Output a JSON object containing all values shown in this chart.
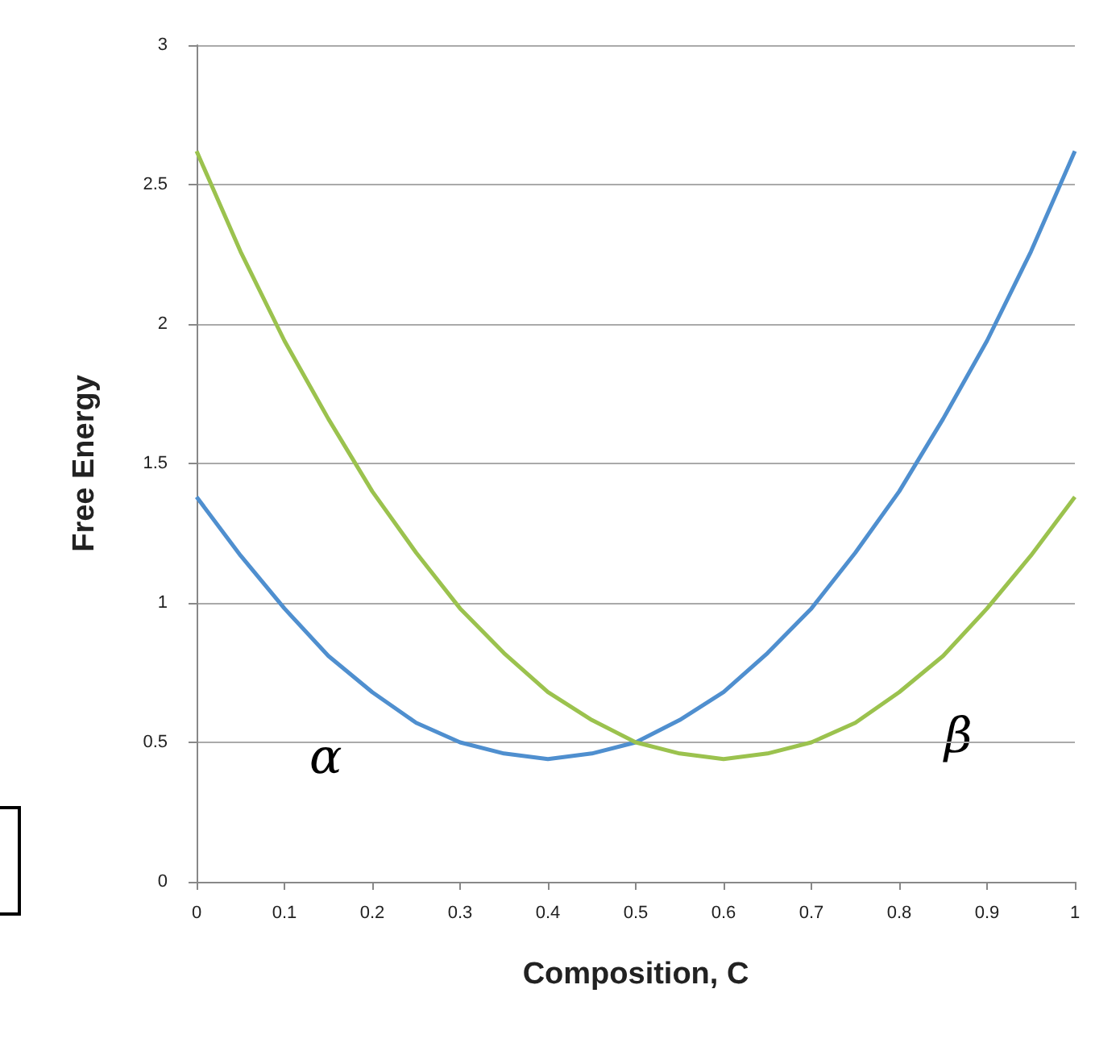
{
  "chart_data": {
    "type": "line",
    "xlabel": "Composition, C",
    "ylabel": "Free Energy",
    "x": [
      0,
      0.05,
      0.1,
      0.15,
      0.2,
      0.25,
      0.3,
      0.35,
      0.4,
      0.45,
      0.5,
      0.55,
      0.6,
      0.65,
      0.7,
      0.75,
      0.8,
      0.85,
      0.9,
      0.95,
      1
    ],
    "series": [
      {
        "color": "#4f8fcf",
        "values": [
          1.38,
          1.17,
          0.98,
          0.81,
          0.68,
          0.57,
          0.5,
          0.46,
          0.44,
          0.46,
          0.5,
          0.58,
          0.68,
          0.82,
          0.98,
          1.18,
          1.4,
          1.66,
          1.94,
          2.26,
          2.62
        ]
      },
      {
        "color": "#9bc24e",
        "values": [
          2.62,
          2.26,
          1.94,
          1.66,
          1.4,
          1.18,
          0.98,
          0.82,
          0.68,
          0.58,
          0.5,
          0.46,
          0.44,
          0.46,
          0.5,
          0.57,
          0.68,
          0.81,
          0.98,
          1.17,
          1.38
        ]
      }
    ],
    "annotations": [
      "α",
      "β"
    ],
    "xlim": [
      0,
      1
    ],
    "xticks": [
      0,
      0.1,
      0.2,
      0.3,
      0.4,
      0.5,
      0.6,
      0.7,
      0.8,
      0.9,
      1
    ],
    "ylim": [
      0,
      3
    ],
    "yticks": [
      0,
      0.5,
      1,
      1.5,
      2,
      2.5,
      3
    ],
    "grid": "y",
    "marker": "none",
    "line_style": "solid"
  }
}
